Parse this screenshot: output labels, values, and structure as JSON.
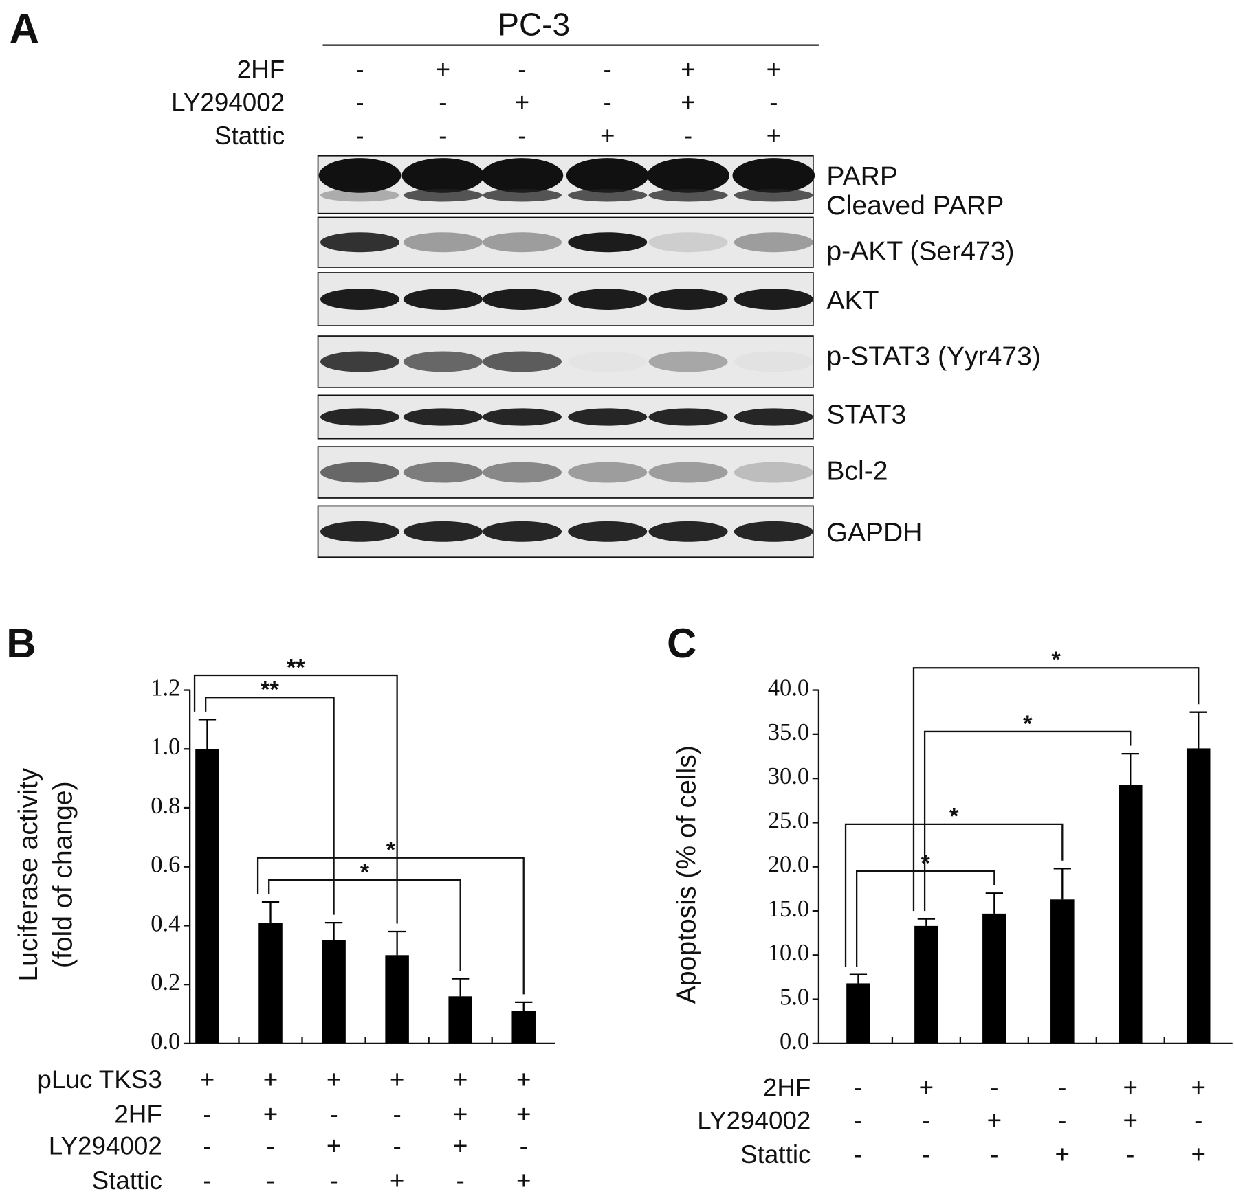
{
  "panel_labels": [
    "A",
    "B",
    "C"
  ],
  "blot": {
    "cell_line": "PC-3",
    "treatments": [
      {
        "name": "2HF",
        "signs": [
          "-",
          "+",
          "-",
          "-",
          "+",
          "+"
        ]
      },
      {
        "name": "LY294002",
        "signs": [
          "-",
          "-",
          "+",
          "-",
          "+",
          "-"
        ]
      },
      {
        "name": "Stattic",
        "signs": [
          "-",
          "-",
          "-",
          "+",
          "-",
          "+"
        ]
      }
    ],
    "proteins": [
      "PARP",
      "Cleaved PARP",
      "p-AKT (Ser473)",
      "AKT",
      "p-STAT3 (Yyr473)",
      "STAT3",
      "Bcl-2",
      "GAPDH"
    ]
  },
  "chart_data": [
    {
      "type": "bar",
      "ylabel": [
        "Luciferase activity",
        "(fold of change)"
      ],
      "values": [
        1.0,
        0.41,
        0.35,
        0.3,
        0.16,
        0.11
      ],
      "errors": [
        0.1,
        0.07,
        0.06,
        0.08,
        0.06,
        0.03
      ],
      "color": "#000000",
      "ylim": [
        0,
        1.2
      ],
      "yticks": [
        {
          "value": 0,
          "label": "0.0"
        },
        0.2,
        0.4,
        0.6,
        0.8,
        {
          "value": 1,
          "label": "1.0"
        },
        1.2
      ],
      "conditions": [
        {
          "name": "pLuc TKS3",
          "signs": [
            "+",
            "+",
            "+",
            "+",
            "+",
            "+"
          ]
        },
        {
          "name": "2HF",
          "signs": [
            "-",
            "+",
            "-",
            "-",
            "+",
            "+"
          ]
        },
        {
          "name": "LY294002",
          "signs": [
            "-",
            "-",
            "+",
            "-",
            "+",
            "-"
          ]
        },
        {
          "name": "Stattic",
          "signs": [
            "-",
            "-",
            "-",
            "+",
            "-",
            "+"
          ]
        }
      ],
      "comparisons": [
        {
          "bars": [
            0,
            2
          ],
          "label": "**"
        },
        {
          "bars": [
            0,
            3
          ],
          "label": "**"
        },
        {
          "bars": [
            1,
            4
          ],
          "label": "*"
        },
        {
          "bars": [
            1,
            5
          ],
          "label": "*"
        }
      ]
    },
    {
      "type": "bar",
      "ylabel": [
        "Apoptosis (% of cells)"
      ],
      "values": [
        6.8,
        13.3,
        14.7,
        16.3,
        29.3,
        33.4
      ],
      "errors": [
        1.0,
        0.8,
        2.3,
        3.5,
        3.5,
        4.1
      ],
      "color": "#000000",
      "ylim": [
        0,
        40
      ],
      "yticks": [
        {
          "value": 0,
          "label": "0.0"
        },
        {
          "value": 5,
          "label": "5.0"
        },
        {
          "value": 10,
          "label": "10.0"
        },
        {
          "value": 15,
          "label": "15.0"
        },
        {
          "value": 20,
          "label": "20.0"
        },
        {
          "value": 25,
          "label": "25.0"
        },
        {
          "value": 30,
          "label": "30.0"
        },
        {
          "value": 35,
          "label": "35.0"
        },
        {
          "value": 40,
          "label": "40.0"
        }
      ],
      "conditions": [
        {
          "name": "2HF",
          "signs": [
            "-",
            "+",
            "-",
            "-",
            "+",
            "+"
          ]
        },
        {
          "name": "LY294002",
          "signs": [
            "-",
            "-",
            "+",
            "-",
            "+",
            "-"
          ]
        },
        {
          "name": "Stattic",
          "signs": [
            "-",
            "-",
            "-",
            "+",
            "-",
            "+"
          ]
        }
      ],
      "comparisons": [
        {
          "bars": [
            0,
            2
          ],
          "label": "*"
        },
        {
          "bars": [
            0,
            3
          ],
          "label": "*"
        },
        {
          "bars": [
            1,
            4
          ],
          "label": "*"
        },
        {
          "bars": [
            1,
            5
          ],
          "label": "*"
        }
      ]
    }
  ]
}
